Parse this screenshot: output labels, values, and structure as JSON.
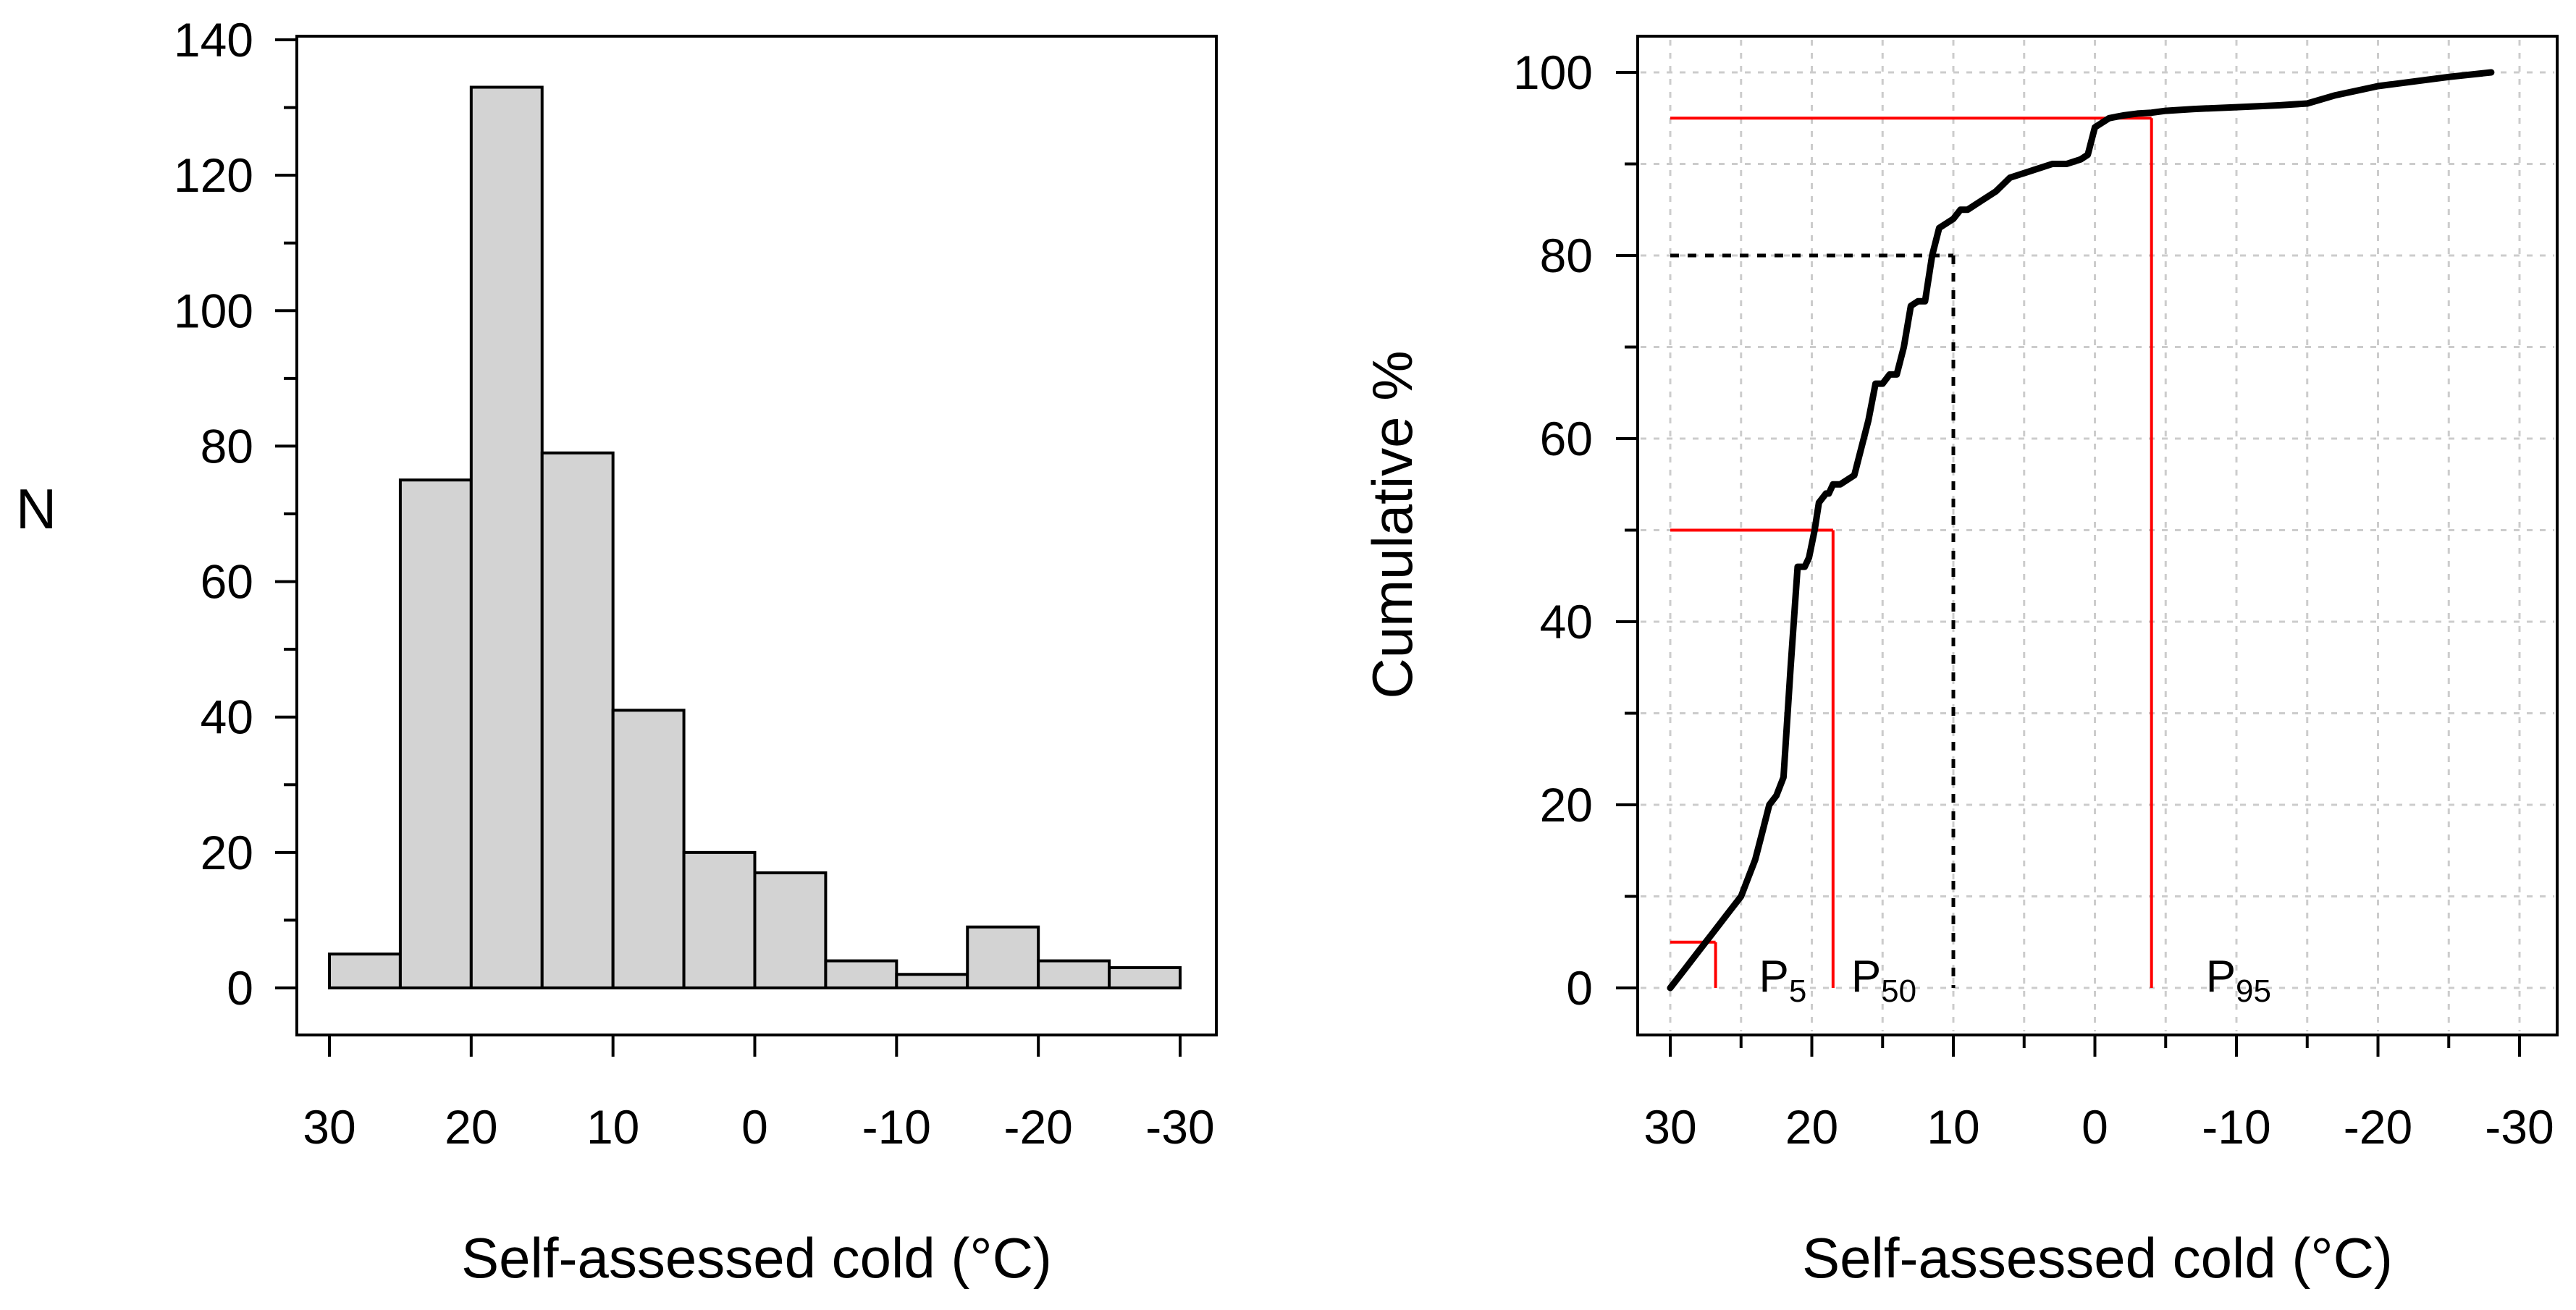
{
  "chart_data": [
    {
      "type": "bar",
      "panel": "left",
      "chart_kind": "histogram",
      "xlabel": "Self-assessed cold (°C)",
      "ylabel": "N",
      "xlim": [
        30,
        -30
      ],
      "ylim": [
        0,
        140
      ],
      "x_ticks": [
        30,
        20,
        10,
        0,
        -10,
        -20,
        -30
      ],
      "x_tick_labels": [
        "30",
        "20",
        "10",
        "0",
        "-10",
        "-20",
        "-30"
      ],
      "y_ticks": [
        0,
        20,
        40,
        60,
        80,
        100,
        120,
        140
      ],
      "y_tick_labels": [
        "0",
        "20",
        "40",
        "60",
        "80",
        "100",
        "120",
        "140"
      ],
      "bin_edges": [
        30,
        25,
        20,
        15,
        10,
        5,
        0,
        -5,
        -10,
        -15,
        -20,
        -25,
        -30
      ],
      "values": [
        5,
        75,
        133,
        79,
        41,
        20,
        17,
        4,
        2,
        9,
        4,
        3
      ],
      "bar_color": "#d3d3d3",
      "edge_color": "#000000"
    },
    {
      "type": "line",
      "panel": "right",
      "chart_kind": "cumulative distribution",
      "xlabel": "Self-assessed cold (°C)",
      "ylabel": "Cumulative %",
      "xlim": [
        30,
        -30
      ],
      "ylim": [
        0,
        100
      ],
      "grid": true,
      "x_ticks": [
        30,
        20,
        10,
        0,
        -10,
        -20,
        -30
      ],
      "x_tick_labels": [
        "30",
        "20",
        "10",
        "0",
        "-10",
        "-20",
        "-30"
      ],
      "y_ticks": [
        0,
        20,
        40,
        60,
        80,
        100
      ],
      "y_tick_labels": [
        "0",
        "20",
        "40",
        "60",
        "80",
        "100"
      ],
      "series": [
        {
          "name": "cumulative",
          "color": "#000000",
          "x": [
            30,
            29,
            28,
            27,
            26,
            25,
            24.5,
            24,
            23.5,
            23,
            22.5,
            22,
            21.5,
            21,
            20.5,
            20.2,
            19.8,
            19.5,
            19,
            18.8,
            18.5,
            18,
            17,
            16,
            15.5,
            15.3,
            15,
            14.5,
            14,
            13.5,
            13,
            12.5,
            12,
            11.5,
            11,
            10,
            9.5,
            9,
            8,
            7,
            6,
            5,
            4,
            3,
            2,
            1,
            0.5,
            0,
            -0.5,
            -1,
            -2,
            -3,
            -4,
            -5,
            -7,
            -10,
            -13,
            -15,
            -17,
            -20,
            -25,
            -28
          ],
          "y": [
            0,
            2,
            4,
            6,
            8,
            10,
            12,
            14,
            17,
            20,
            21,
            23,
            35,
            46,
            46,
            47,
            50,
            53,
            54,
            54,
            55,
            55,
            56,
            62,
            66,
            66,
            66,
            67,
            67,
            70,
            74.5,
            75,
            75,
            80,
            83,
            84,
            85,
            85,
            86,
            87,
            88.5,
            89,
            89.5,
            90,
            90,
            90.5,
            91,
            94,
            94.5,
            95,
            95.3,
            95.5,
            95.6,
            95.8,
            96,
            96.2,
            96.4,
            96.6,
            97.5,
            98.5,
            99.5,
            100
          ]
        }
      ],
      "percentile_markers": [
        {
          "label": "P",
          "subscript": "5",
          "percent": 5,
          "x": 26.8,
          "color": "#ff0000"
        },
        {
          "label": "P",
          "subscript": "50",
          "percent": 50,
          "x": 18.5,
          "color": "#ff0000"
        },
        {
          "label": "P",
          "subscript": "95",
          "percent": 95,
          "x": -4,
          "color": "#ff0000"
        }
      ],
      "reference_line": {
        "percent": 80,
        "x": 10,
        "style": "dotted",
        "color": "#000000"
      }
    }
  ]
}
